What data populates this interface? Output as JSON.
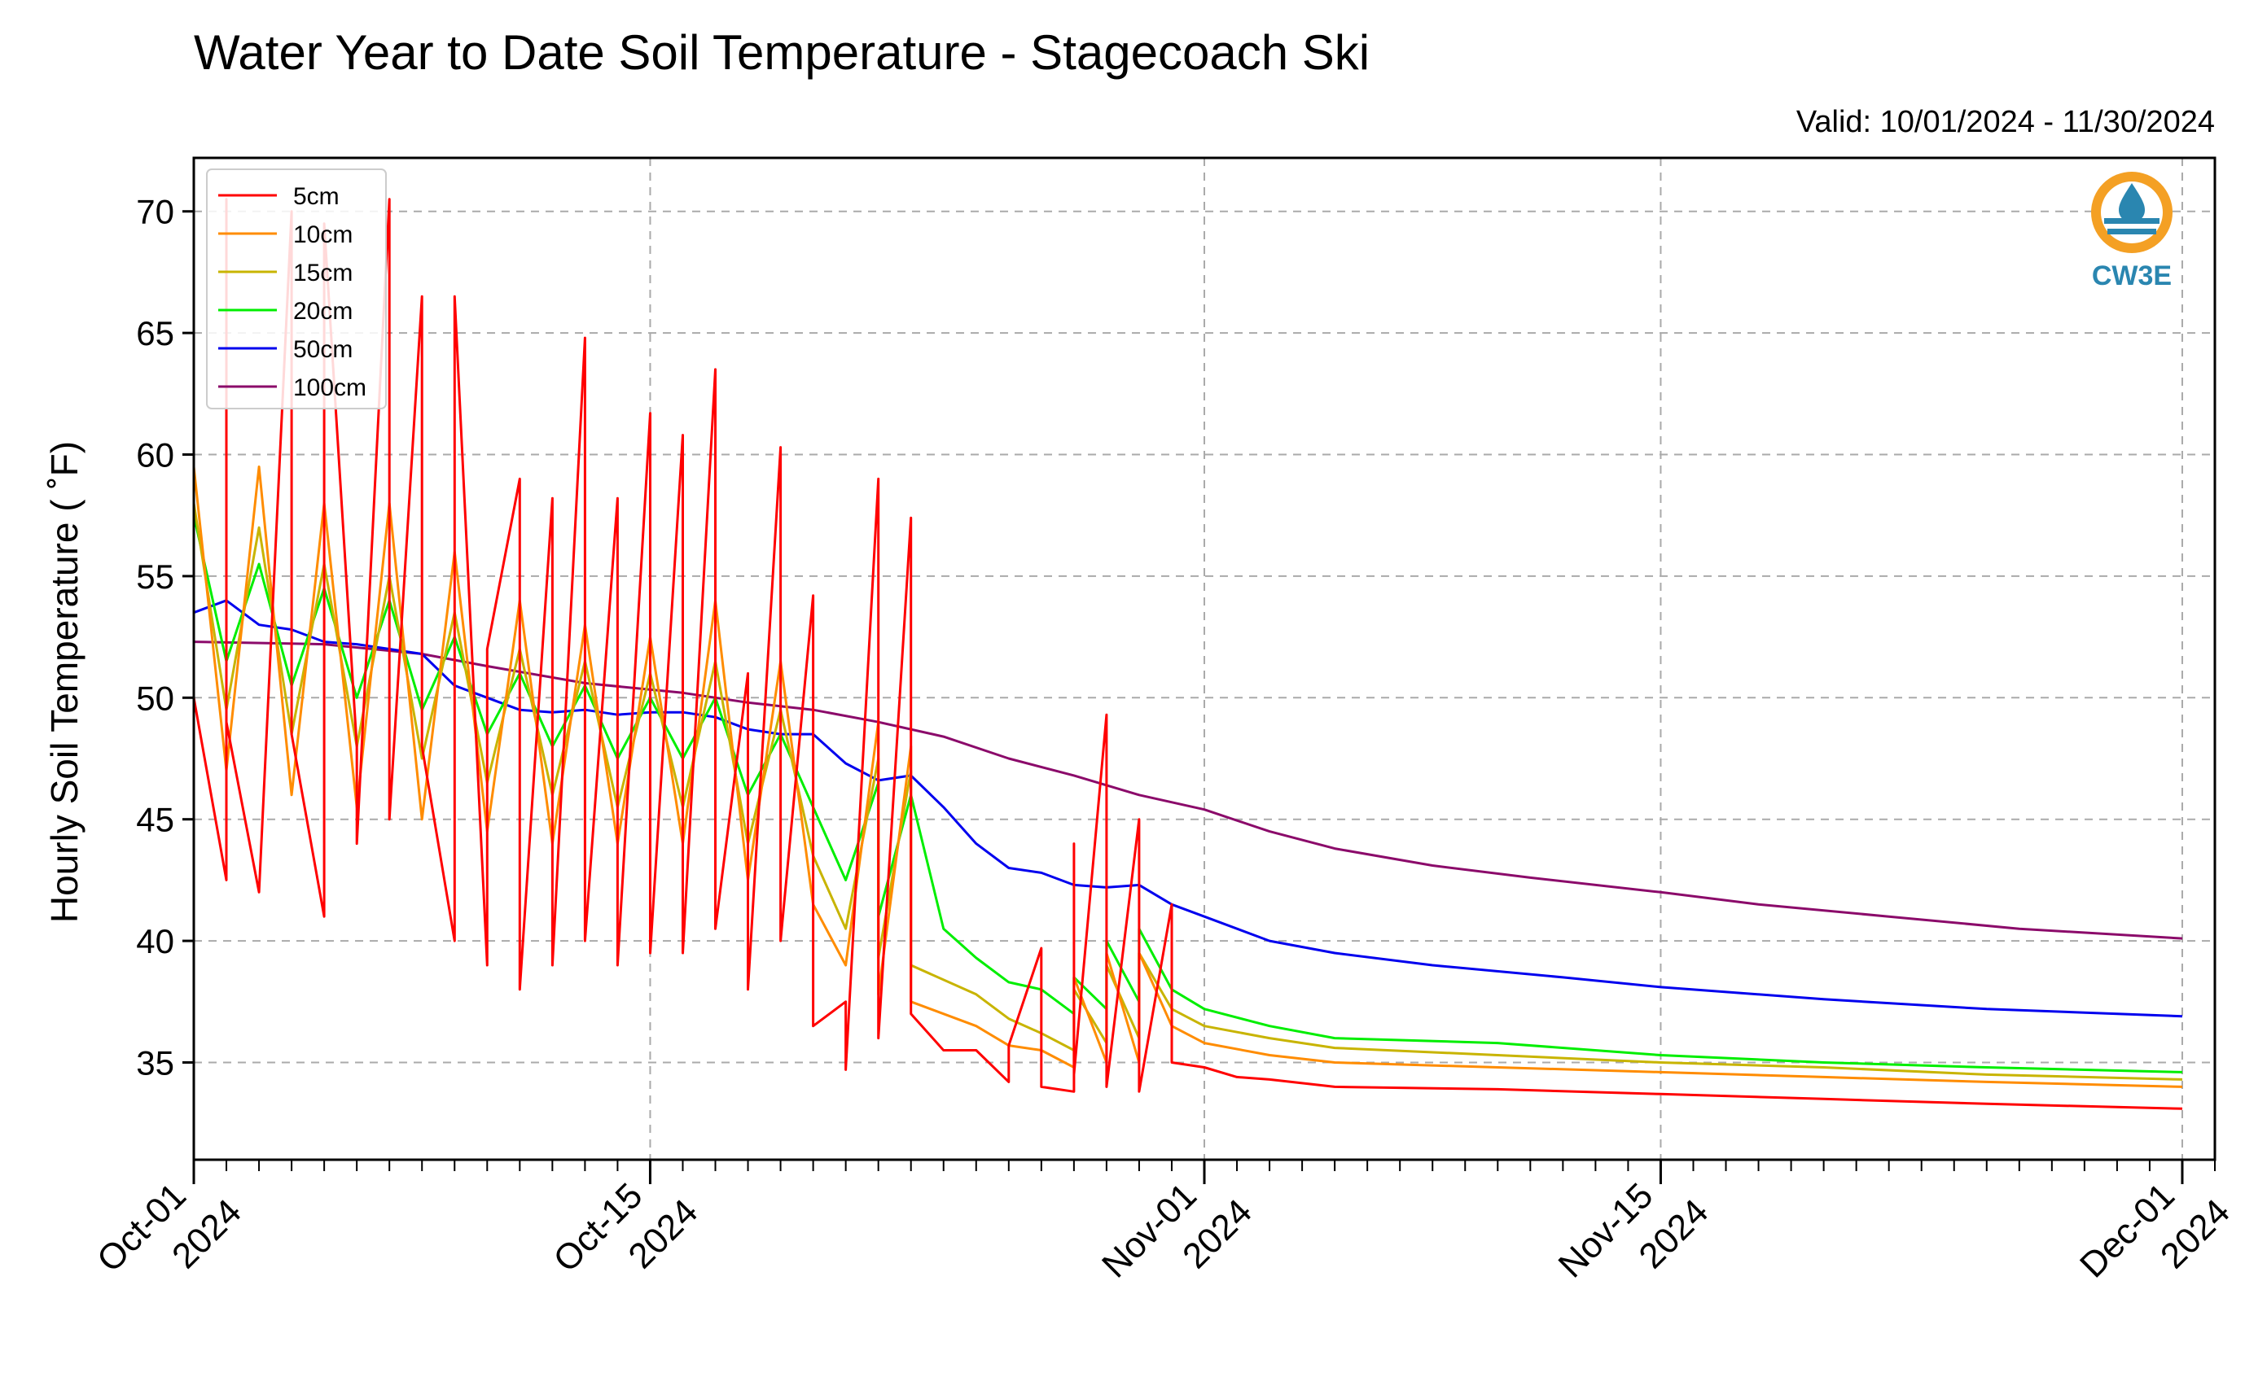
{
  "chart_data": {
    "type": "line",
    "title": "Water Year to Date Soil Temperature - Stagecoach Ski",
    "subtitle": "Valid: 10/01/2024 - 11/30/2024",
    "ylabel": "Hourly Soil Temperature ( ˚F)",
    "xlabel": "",
    "x_range": [
      "2024-10-01",
      "2024-12-02"
    ],
    "ylim": [
      31,
      72.2
    ],
    "y_ticks": [
      35,
      40,
      45,
      50,
      55,
      60,
      65,
      70
    ],
    "x_ticks": [
      {
        "date": "2024-10-01",
        "line1": "Oct-01",
        "line2": "2024"
      },
      {
        "date": "2024-10-15",
        "line1": "Oct-15",
        "line2": "2024"
      },
      {
        "date": "2024-11-01",
        "line1": "Nov-01",
        "line2": "2024"
      },
      {
        "date": "2024-11-15",
        "line1": "Nov-15",
        "line2": "2024"
      },
      {
        "date": "2024-12-01",
        "line1": "Dec-01",
        "line2": "2024"
      }
    ],
    "grid": true,
    "legend_position": "top-left",
    "logo_text": "CW3E",
    "series": [
      {
        "name": "5cm",
        "color": "#ff0000",
        "points": [
          [
            "2024-10-01",
            63
          ],
          [
            "2024-10-01",
            50
          ],
          [
            "2024-10-02",
            42.5
          ],
          [
            "2024-10-02",
            70.5
          ],
          [
            "2024-10-02",
            49
          ],
          [
            "2024-10-03",
            42
          ],
          [
            "2024-10-04",
            70
          ],
          [
            "2024-10-04",
            48.5
          ],
          [
            "2024-10-05",
            41
          ],
          [
            "2024-10-05",
            69.5
          ],
          [
            "2024-10-06",
            48
          ],
          [
            "2024-10-06",
            44
          ],
          [
            "2024-10-07",
            70.5
          ],
          [
            "2024-10-07",
            45
          ],
          [
            "2024-10-08",
            66.5
          ],
          [
            "2024-10-08",
            48
          ],
          [
            "2024-10-09",
            40
          ],
          [
            "2024-10-09",
            66.5
          ],
          [
            "2024-10-10",
            39
          ],
          [
            "2024-10-10",
            52
          ],
          [
            "2024-10-11",
            59
          ],
          [
            "2024-10-11",
            38
          ],
          [
            "2024-10-12",
            58.2
          ],
          [
            "2024-10-12",
            39
          ],
          [
            "2024-10-13",
            64.8
          ],
          [
            "2024-10-13",
            40
          ],
          [
            "2024-10-14",
            58.2
          ],
          [
            "2024-10-14",
            39
          ],
          [
            "2024-10-15",
            61.7
          ],
          [
            "2024-10-15",
            39.5
          ],
          [
            "2024-10-16",
            60.8
          ],
          [
            "2024-10-16",
            39.5
          ],
          [
            "2024-10-17",
            63.5
          ],
          [
            "2024-10-17",
            40.5
          ],
          [
            "2024-10-18",
            51
          ],
          [
            "2024-10-18",
            38
          ],
          [
            "2024-10-19",
            60.3
          ],
          [
            "2024-10-19",
            40
          ],
          [
            "2024-10-20",
            54.2
          ],
          [
            "2024-10-20",
            36.5
          ],
          [
            "2024-10-21",
            37.5
          ],
          [
            "2024-10-21",
            34.7
          ],
          [
            "2024-10-22",
            59
          ],
          [
            "2024-10-22",
            36
          ],
          [
            "2024-10-23",
            57.4
          ],
          [
            "2024-10-23",
            37
          ],
          [
            "2024-10-24",
            35.5
          ],
          [
            "2024-10-25",
            35.5
          ],
          [
            "2024-10-26",
            34.2
          ],
          [
            "2024-10-26",
            35.7
          ],
          [
            "2024-10-27",
            39.7
          ],
          [
            "2024-10-27",
            34
          ],
          [
            "2024-10-28",
            33.8
          ],
          [
            "2024-10-28",
            44
          ],
          [
            "2024-10-28",
            34.5
          ],
          [
            "2024-10-29",
            49.3
          ],
          [
            "2024-10-29",
            34
          ],
          [
            "2024-10-30",
            45
          ],
          [
            "2024-10-30",
            33.8
          ],
          [
            "2024-10-31",
            41.5
          ],
          [
            "2024-10-31",
            35
          ],
          [
            "2024-11-01",
            34.8
          ],
          [
            "2024-11-02",
            34.4
          ],
          [
            "2024-11-03",
            34.3
          ],
          [
            "2024-11-05",
            34
          ],
          [
            "2024-11-10",
            33.9
          ],
          [
            "2024-11-15",
            33.7
          ],
          [
            "2024-11-20",
            33.5
          ],
          [
            "2024-11-25",
            33.3
          ],
          [
            "2024-12-01",
            33.1
          ]
        ]
      },
      {
        "name": "10cm",
        "color": "#ff8c00",
        "points": [
          [
            "2024-10-01",
            59.5
          ],
          [
            "2024-10-02",
            47
          ],
          [
            "2024-10-03",
            59.5
          ],
          [
            "2024-10-04",
            46
          ],
          [
            "2024-10-05",
            58
          ],
          [
            "2024-10-06",
            45.5
          ],
          [
            "2024-10-07",
            58
          ],
          [
            "2024-10-08",
            45
          ],
          [
            "2024-10-09",
            56
          ],
          [
            "2024-10-10",
            44.5
          ],
          [
            "2024-10-11",
            54
          ],
          [
            "2024-10-12",
            44
          ],
          [
            "2024-10-13",
            53
          ],
          [
            "2024-10-14",
            44
          ],
          [
            "2024-10-15",
            52.5
          ],
          [
            "2024-10-16",
            44
          ],
          [
            "2024-10-17",
            54
          ],
          [
            "2024-10-18",
            42.5
          ],
          [
            "2024-10-19",
            51.5
          ],
          [
            "2024-10-20",
            41.5
          ],
          [
            "2024-10-21",
            39
          ],
          [
            "2024-10-22",
            49
          ],
          [
            "2024-10-22",
            37.8
          ],
          [
            "2024-10-23",
            48
          ],
          [
            "2024-10-23",
            37.5
          ],
          [
            "2024-10-25",
            36.5
          ],
          [
            "2024-10-26",
            35.7
          ],
          [
            "2024-10-27",
            35.5
          ],
          [
            "2024-10-28",
            34.8
          ],
          [
            "2024-10-28",
            38.5
          ],
          [
            "2024-10-29",
            35
          ],
          [
            "2024-10-29",
            39.5
          ],
          [
            "2024-10-30",
            35
          ],
          [
            "2024-10-30",
            39.5
          ],
          [
            "2024-10-31",
            36.5
          ],
          [
            "2024-11-01",
            35.8
          ],
          [
            "2024-11-03",
            35.3
          ],
          [
            "2024-11-05",
            35
          ],
          [
            "2024-11-10",
            34.8
          ],
          [
            "2024-11-15",
            34.6
          ],
          [
            "2024-11-20",
            34.4
          ],
          [
            "2024-11-25",
            34.2
          ],
          [
            "2024-12-01",
            34
          ]
        ]
      },
      {
        "name": "15cm",
        "color": "#c8b400",
        "points": [
          [
            "2024-10-01",
            58
          ],
          [
            "2024-10-02",
            49.5
          ],
          [
            "2024-10-03",
            57
          ],
          [
            "2024-10-04",
            48.5
          ],
          [
            "2024-10-05",
            55.5
          ],
          [
            "2024-10-06",
            48
          ],
          [
            "2024-10-07",
            55
          ],
          [
            "2024-10-08",
            47.5
          ],
          [
            "2024-10-09",
            53.5
          ],
          [
            "2024-10-10",
            46.5
          ],
          [
            "2024-10-11",
            52
          ],
          [
            "2024-10-12",
            46
          ],
          [
            "2024-10-13",
            51.5
          ],
          [
            "2024-10-14",
            45.5
          ],
          [
            "2024-10-15",
            51
          ],
          [
            "2024-10-16",
            45.5
          ],
          [
            "2024-10-17",
            51.5
          ],
          [
            "2024-10-18",
            44
          ],
          [
            "2024-10-19",
            49.5
          ],
          [
            "2024-10-20",
            43.5
          ],
          [
            "2024-10-21",
            40.5
          ],
          [
            "2024-10-22",
            47.5
          ],
          [
            "2024-10-22",
            39.3
          ],
          [
            "2024-10-23",
            47
          ],
          [
            "2024-10-23",
            39
          ],
          [
            "2024-10-25",
            37.8
          ],
          [
            "2024-10-26",
            36.8
          ],
          [
            "2024-10-27",
            36.2
          ],
          [
            "2024-10-28",
            35.5
          ],
          [
            "2024-10-28",
            38
          ],
          [
            "2024-10-29",
            35.8
          ],
          [
            "2024-10-29",
            39
          ],
          [
            "2024-10-30",
            36
          ],
          [
            "2024-10-30",
            39.5
          ],
          [
            "2024-10-31",
            37.2
          ],
          [
            "2024-11-01",
            36.5
          ],
          [
            "2024-11-03",
            36
          ],
          [
            "2024-11-05",
            35.6
          ],
          [
            "2024-11-10",
            35.3
          ],
          [
            "2024-11-15",
            35
          ],
          [
            "2024-11-20",
            34.8
          ],
          [
            "2024-11-25",
            34.5
          ],
          [
            "2024-12-01",
            34.3
          ]
        ]
      },
      {
        "name": "20cm",
        "color": "#00ee00",
        "points": [
          [
            "2024-10-01",
            57.5
          ],
          [
            "2024-10-02",
            51.5
          ],
          [
            "2024-10-03",
            55.5
          ],
          [
            "2024-10-04",
            50.5
          ],
          [
            "2024-10-05",
            54.5
          ],
          [
            "2024-10-06",
            50
          ],
          [
            "2024-10-07",
            54
          ],
          [
            "2024-10-08",
            49.5
          ],
          [
            "2024-10-09",
            52.5
          ],
          [
            "2024-10-10",
            48.5
          ],
          [
            "2024-10-11",
            51
          ],
          [
            "2024-10-12",
            48
          ],
          [
            "2024-10-13",
            50.5
          ],
          [
            "2024-10-14",
            47.5
          ],
          [
            "2024-10-15",
            50
          ],
          [
            "2024-10-16",
            47.5
          ],
          [
            "2024-10-17",
            50
          ],
          [
            "2024-10-18",
            46
          ],
          [
            "2024-10-19",
            48.5
          ],
          [
            "2024-10-20",
            45.5
          ],
          [
            "2024-10-21",
            42.5
          ],
          [
            "2024-10-22",
            46.5
          ],
          [
            "2024-10-22",
            41
          ],
          [
            "2024-10-23",
            46
          ],
          [
            "2024-10-24",
            40.5
          ],
          [
            "2024-10-25",
            39.3
          ],
          [
            "2024-10-26",
            38.3
          ],
          [
            "2024-10-27",
            38
          ],
          [
            "2024-10-28",
            37
          ],
          [
            "2024-10-28",
            38.5
          ],
          [
            "2024-10-29",
            37.2
          ],
          [
            "2024-10-29",
            40
          ],
          [
            "2024-10-30",
            37.5
          ],
          [
            "2024-10-30",
            40.5
          ],
          [
            "2024-10-31",
            38
          ],
          [
            "2024-11-01",
            37.2
          ],
          [
            "2024-11-03",
            36.5
          ],
          [
            "2024-11-05",
            36
          ],
          [
            "2024-11-10",
            35.8
          ],
          [
            "2024-11-15",
            35.3
          ],
          [
            "2024-11-20",
            35
          ],
          [
            "2024-11-25",
            34.8
          ],
          [
            "2024-12-01",
            34.6
          ]
        ]
      },
      {
        "name": "50cm",
        "color": "#0000ee",
        "points": [
          [
            "2024-10-01",
            53.5
          ],
          [
            "2024-10-02",
            54
          ],
          [
            "2024-10-03",
            53
          ],
          [
            "2024-10-04",
            52.8
          ],
          [
            "2024-10-05",
            52.3
          ],
          [
            "2024-10-06",
            52.2
          ],
          [
            "2024-10-07",
            52
          ],
          [
            "2024-10-08",
            51.8
          ],
          [
            "2024-10-09",
            50.5
          ],
          [
            "2024-10-10",
            50
          ],
          [
            "2024-10-11",
            49.5
          ],
          [
            "2024-10-12",
            49.4
          ],
          [
            "2024-10-13",
            49.5
          ],
          [
            "2024-10-14",
            49.3
          ],
          [
            "2024-10-15",
            49.4
          ],
          [
            "2024-10-16",
            49.4
          ],
          [
            "2024-10-17",
            49.2
          ],
          [
            "2024-10-18",
            48.7
          ],
          [
            "2024-10-19",
            48.5
          ],
          [
            "2024-10-20",
            48.5
          ],
          [
            "2024-10-21",
            47.3
          ],
          [
            "2024-10-22",
            46.6
          ],
          [
            "2024-10-23",
            46.8
          ],
          [
            "2024-10-24",
            45.5
          ],
          [
            "2024-10-25",
            44
          ],
          [
            "2024-10-26",
            43
          ],
          [
            "2024-10-27",
            42.8
          ],
          [
            "2024-10-28",
            42.3
          ],
          [
            "2024-10-29",
            42.2
          ],
          [
            "2024-10-30",
            42.3
          ],
          [
            "2024-10-31",
            41.5
          ],
          [
            "2024-11-01",
            41
          ],
          [
            "2024-11-03",
            40
          ],
          [
            "2024-11-05",
            39.5
          ],
          [
            "2024-11-08",
            39
          ],
          [
            "2024-11-12",
            38.5
          ],
          [
            "2024-11-15",
            38.1
          ],
          [
            "2024-11-20",
            37.6
          ],
          [
            "2024-11-25",
            37.2
          ],
          [
            "2024-12-01",
            36.9
          ]
        ]
      },
      {
        "name": "100cm",
        "color": "#8b0a6a",
        "points": [
          [
            "2024-10-01",
            52.3
          ],
          [
            "2024-10-05",
            52.2
          ],
          [
            "2024-10-08",
            51.8
          ],
          [
            "2024-10-10",
            51.3
          ],
          [
            "2024-10-13",
            50.6
          ],
          [
            "2024-10-16",
            50.2
          ],
          [
            "2024-10-18",
            49.8
          ],
          [
            "2024-10-20",
            49.5
          ],
          [
            "2024-10-22",
            49
          ],
          [
            "2024-10-24",
            48.4
          ],
          [
            "2024-10-26",
            47.5
          ],
          [
            "2024-10-28",
            46.8
          ],
          [
            "2024-10-30",
            46
          ],
          [
            "2024-11-01",
            45.4
          ],
          [
            "2024-11-03",
            44.5
          ],
          [
            "2024-11-05",
            43.8
          ],
          [
            "2024-11-08",
            43.1
          ],
          [
            "2024-11-11",
            42.6
          ],
          [
            "2024-11-15",
            42
          ],
          [
            "2024-11-18",
            41.5
          ],
          [
            "2024-11-22",
            41
          ],
          [
            "2024-11-26",
            40.5
          ],
          [
            "2024-12-01",
            40.1
          ]
        ]
      }
    ]
  }
}
